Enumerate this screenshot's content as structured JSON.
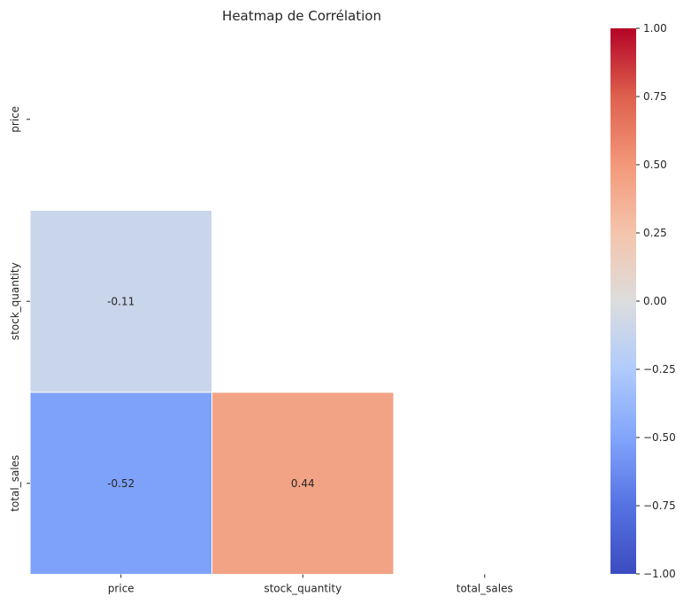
{
  "chart_data": {
    "type": "heatmap",
    "title": "Heatmap de Corrélation",
    "x_labels": [
      "price",
      "stock_quantity",
      "total_sales"
    ],
    "y_labels": [
      "price",
      "stock_quantity",
      "total_sales"
    ],
    "mask": "upper-triangle-and-diagonal",
    "cells": [
      {
        "row": "stock_quantity",
        "col": "price",
        "value": -0.11,
        "label": "-0.11"
      },
      {
        "row": "total_sales",
        "col": "price",
        "value": -0.52,
        "label": "-0.52"
      },
      {
        "row": "total_sales",
        "col": "stock_quantity",
        "value": 0.44,
        "label": "0.44"
      }
    ],
    "colormap": "coolwarm",
    "vmin": -1.0,
    "vmax": 1.0,
    "colorbar_ticks": [
      "1.00",
      "0.75",
      "0.50",
      "0.25",
      "0.00",
      "−0.25",
      "−0.50",
      "−0.75",
      "−1.00"
    ],
    "colorbar_tick_values": [
      1.0,
      0.75,
      0.5,
      0.25,
      0.0,
      -0.25,
      -0.5,
      -0.75,
      -1.0
    ],
    "cell_border_color": "#ffffff",
    "colors": {
      "neg_end": "#3b4cc0",
      "mid": "#dddddd",
      "pos_end": "#b40426"
    }
  }
}
